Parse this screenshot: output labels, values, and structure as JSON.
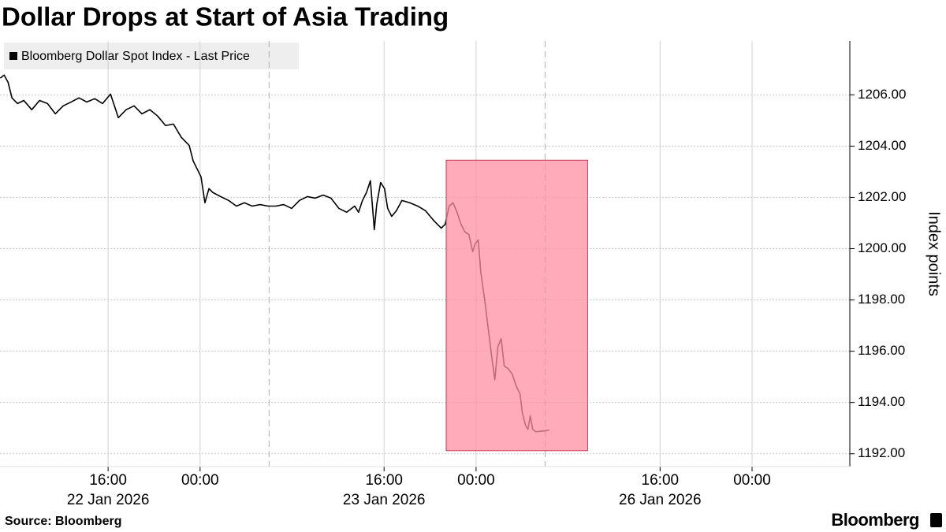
{
  "chart_data": {
    "type": "line",
    "title": "Dollar Drops at Start of Asia Trading",
    "y_label": "Index points",
    "source": "Source: Bloomberg",
    "brand": "Bloomberg",
    "legend_position": "top-left",
    "grid": true,
    "x": [
      6.62,
      6.96,
      7.3,
      7.64,
      8.12,
      8.67,
      9.36,
      10.04,
      10.73,
      11.41,
      12.1,
      12.78,
      13.47,
      14.15,
      14.84,
      15.52,
      16.21,
      16.55,
      16.89,
      17.57,
      18.26,
      18.94,
      19.63,
      20.31,
      21.0,
      21.68,
      22.37,
      23.05,
      23.4,
      23.74,
      24.08,
      24.42,
      24.77,
      25.11,
      25.79,
      26.48,
      27.16,
      27.85,
      28.53,
      29.22,
      29.9,
      30.59,
      31.27,
      31.96,
      32.64,
      33.33,
      34.01,
      34.7,
      35.38,
      36.07,
      36.75,
      37.44,
      37.78,
      38.12,
      38.47,
      38.81,
      39.15,
      39.36,
      39.7,
      40.04,
      40.31,
      40.66,
      41.07,
      41.55,
      42.23,
      42.92,
      43.6,
      44.29,
      44.97,
      45.31,
      45.66,
      46.0,
      46.34,
      46.69,
      47.03,
      47.37,
      47.71,
      47.92,
      48.19,
      48.4,
      48.74,
      49.08,
      49.42,
      49.63,
      49.9,
      50.18,
      50.45,
      50.79,
      51.14,
      51.48,
      51.82,
      52.03,
      52.3,
      52.51,
      52.71,
      52.92,
      53.19,
      53.88,
      54.36
    ],
    "series": [
      {
        "name": "Bloomberg Dollar Spot Index - Last Price",
        "color": "#000000",
        "values": [
          1206.65,
          1206.77,
          1206.49,
          1205.88,
          1205.66,
          1205.78,
          1205.42,
          1205.78,
          1205.66,
          1205.26,
          1205.57,
          1205.72,
          1205.88,
          1205.72,
          1205.85,
          1205.66,
          1206.03,
          1205.57,
          1205.11,
          1205.42,
          1205.57,
          1205.26,
          1205.42,
          1205.17,
          1204.8,
          1204.86,
          1204.34,
          1204.03,
          1203.42,
          1203.11,
          1202.8,
          1201.79,
          1202.34,
          1202.19,
          1202.03,
          1201.88,
          1201.66,
          1201.79,
          1201.66,
          1201.72,
          1201.66,
          1201.66,
          1201.72,
          1201.57,
          1201.88,
          1202.03,
          1201.97,
          1202.09,
          1201.97,
          1201.57,
          1201.42,
          1201.66,
          1201.42,
          1201.88,
          1202.19,
          1202.65,
          1200.74,
          1201.72,
          1202.58,
          1202.34,
          1201.57,
          1201.26,
          1201.48,
          1201.88,
          1201.79,
          1201.66,
          1201.48,
          1201.11,
          1200.8,
          1200.95,
          1201.66,
          1201.79,
          1201.42,
          1200.95,
          1200.65,
          1200.55,
          1199.88,
          1200.19,
          1200.34,
          1199.11,
          1198.03,
          1196.8,
          1195.57,
          1194.89,
          1196.18,
          1196.49,
          1195.42,
          1195.32,
          1195.11,
          1194.65,
          1194.34,
          1193.57,
          1193.11,
          1192.95,
          1193.48,
          1192.95,
          1192.86,
          1192.89,
          1192.92
        ]
      }
    ],
    "xlim": [
      6.6,
      80.5
    ],
    "xticks": [
      {
        "value": 16,
        "label": "16:00"
      },
      {
        "value": 24,
        "label": "00:00"
      },
      {
        "value": 40,
        "label": "16:00"
      },
      {
        "value": 48,
        "label": "00:00"
      },
      {
        "value": 64,
        "label": "16:00"
      },
      {
        "value": 72,
        "label": "00:00"
      }
    ],
    "x_date_labels": [
      {
        "value": 16,
        "label": "22 Jan 2026"
      },
      {
        "value": 40,
        "label": "23 Jan 2026"
      },
      {
        "value": 64,
        "label": "26 Jan 2026"
      }
    ],
    "session_lines": [
      30,
      54
    ],
    "ylim": [
      1191.5,
      1208.1
    ],
    "yticks": [
      {
        "value": 1192,
        "label": "1192.00"
      },
      {
        "value": 1194,
        "label": "1194.00"
      },
      {
        "value": 1196,
        "label": "1196.00"
      },
      {
        "value": 1198,
        "label": "1198.00"
      },
      {
        "value": 1200,
        "label": "1200.00"
      },
      {
        "value": 1202,
        "label": "1202.00"
      },
      {
        "value": 1204,
        "label": "1204.00"
      },
      {
        "value": 1206,
        "label": "1206.00"
      }
    ],
    "highlight": {
      "x": [
        45.4,
        57.7
      ],
      "y": [
        1192.12,
        1203.45
      ],
      "color": "#ff8fa3",
      "border": "#c83a55"
    }
  }
}
